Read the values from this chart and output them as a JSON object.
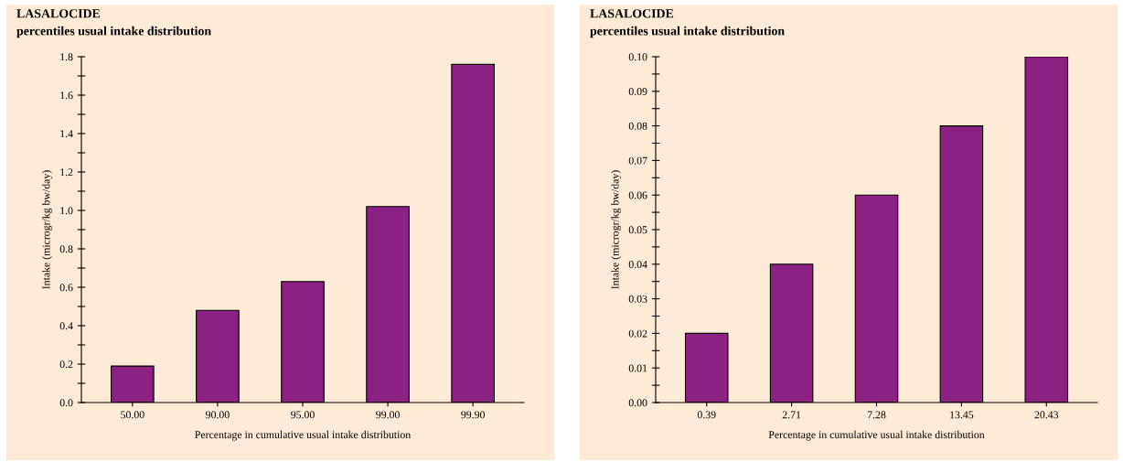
{
  "chart_data": [
    {
      "type": "bar",
      "title": "LASALOCIDE",
      "subtitle": "percentiles usual intake distribution",
      "xlabel": "Percentage in cumulative usual intake distribution",
      "ylabel": "Intake (microgr/kg bw/day)",
      "categories": [
        "50.00",
        "90.00",
        "95.00",
        "99.00",
        "99.90"
      ],
      "values": [
        0.19,
        0.48,
        0.63,
        1.02,
        1.76
      ],
      "color": "#8b2283",
      "ylim": [
        0,
        1.8
      ],
      "yticks": [
        {
          "value": 0,
          "label": "0.0"
        },
        {
          "value": 0.1,
          "label": null
        },
        {
          "value": 0.2,
          "label": "0.2"
        },
        {
          "value": 0.3,
          "label": null
        },
        {
          "value": 0.4,
          "label": "0.4"
        },
        {
          "value": 0.5,
          "label": null
        },
        {
          "value": 0.6,
          "label": "0.6"
        },
        {
          "value": 0.7,
          "label": null
        },
        {
          "value": 0.8,
          "label": "0.8"
        },
        {
          "value": 0.9,
          "label": null
        },
        {
          "value": 1.0,
          "label": "1.0"
        },
        {
          "value": 1.1,
          "label": null
        },
        {
          "value": 1.2,
          "label": "1.2"
        },
        {
          "value": 1.3,
          "label": null
        },
        {
          "value": 1.4,
          "label": "1.4"
        },
        {
          "value": 1.5,
          "label": null
        },
        {
          "value": 1.6,
          "label": "1.6"
        },
        {
          "value": 1.7,
          "label": null
        },
        {
          "value": 1.8,
          "label": "1.8"
        }
      ],
      "grid": false,
      "legend": false
    },
    {
      "type": "bar",
      "title": "LASALOCIDE",
      "subtitle": "percentiles usual intake distribution",
      "xlabel": "Percentage in cumulative usual intake distribution",
      "ylabel": "Intake (microgr/kg bw/day)",
      "categories": [
        "0.39",
        "2.71",
        "7.28",
        "13.45",
        "20.43"
      ],
      "values": [
        0.02,
        0.04,
        0.06,
        0.08,
        0.1
      ],
      "color": "#8b2283",
      "ylim": [
        0,
        0.1
      ],
      "yticks": [
        {
          "value": 0,
          "label": "0.00"
        },
        {
          "value": 0.005,
          "label": null
        },
        {
          "value": 0.01,
          "label": "0.01"
        },
        {
          "value": 0.015,
          "label": null
        },
        {
          "value": 0.02,
          "label": "0.02"
        },
        {
          "value": 0.025,
          "label": null
        },
        {
          "value": 0.03,
          "label": "0.03"
        },
        {
          "value": 0.035,
          "label": null
        },
        {
          "value": 0.04,
          "label": "0.04"
        },
        {
          "value": 0.045,
          "label": null
        },
        {
          "value": 0.05,
          "label": "0.05"
        },
        {
          "value": 0.055,
          "label": null
        },
        {
          "value": 0.06,
          "label": "0.06"
        },
        {
          "value": 0.065,
          "label": null
        },
        {
          "value": 0.07,
          "label": "0.07"
        },
        {
          "value": 0.075,
          "label": null
        },
        {
          "value": 0.08,
          "label": "0.08"
        },
        {
          "value": 0.085,
          "label": null
        },
        {
          "value": 0.09,
          "label": "0.09"
        },
        {
          "value": 0.095,
          "label": null
        },
        {
          "value": 0.1,
          "label": "0.10"
        }
      ],
      "grid": false,
      "legend": false
    }
  ]
}
